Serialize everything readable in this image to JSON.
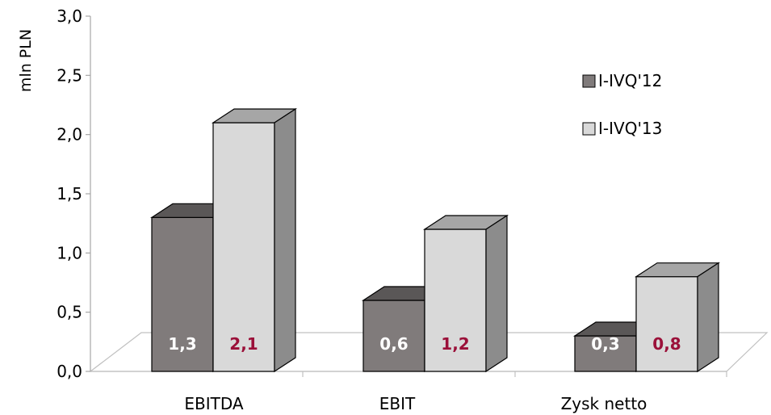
{
  "chart_data": {
    "type": "bar",
    "three_d": true,
    "categories": [
      "EBITDA",
      "EBIT",
      "Zysk netto"
    ],
    "series": [
      {
        "name": "I-IVQ'12",
        "values": [
          1.3,
          0.6,
          0.3
        ],
        "labels": [
          "1,3",
          "0,6",
          "0,3"
        ],
        "color": "#807b7b",
        "label_color": "#ffffff"
      },
      {
        "name": "I-IVQ'13",
        "values": [
          2.1,
          1.2,
          0.8
        ],
        "labels": [
          "2,1",
          "1,2",
          "0,8"
        ],
        "color": "#d9d9d9",
        "label_color": "#9b1039"
      }
    ],
    "ylabel": "mln PLN",
    "ylim": [
      0,
      3.0
    ],
    "yticks": [
      "0,0",
      "0,5",
      "1,0",
      "1,5",
      "2,0",
      "2,5",
      "3,0"
    ],
    "grid": false,
    "legend": "right"
  }
}
